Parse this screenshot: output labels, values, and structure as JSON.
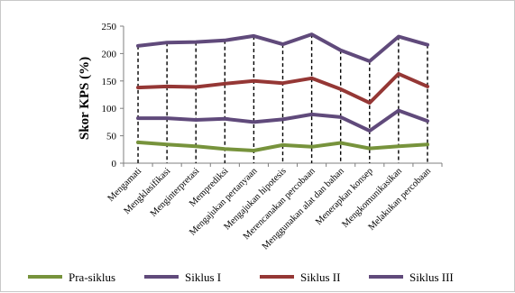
{
  "chart_data": {
    "type": "line",
    "title": "",
    "xlabel": "",
    "ylabel": "Skor KPS (%)",
    "ylim": [
      0,
      250
    ],
    "yticks": [
      0,
      50,
      100,
      150,
      200,
      250
    ],
    "grid": false,
    "legend_position": "bottom",
    "drop_lines": true,
    "stacked": true,
    "categories": [
      "Mengamati",
      "Mengklasifikasi",
      "Menginterpretasi",
      "Memprediksi",
      "Mengajukan pertanyaan",
      "Mengajukan hipotesis",
      "Merencanakan percobaan",
      "Menggunakan alat dan bahan",
      "Menerapkan konsep",
      "Mengkomunikasikan",
      "Melakukan percobaan"
    ],
    "series": [
      {
        "name": "Pra-siklus",
        "color": "#77933c",
        "values": [
          38,
          34,
          31,
          26,
          23,
          33,
          30,
          37,
          27,
          31,
          34
        ]
      },
      {
        "name": "Siklus I",
        "color": "#604a7b",
        "values": [
          44,
          48,
          48,
          55,
          52,
          47,
          59,
          47,
          32,
          65,
          43
        ]
      },
      {
        "name": "Siklus II",
        "color": "#953735",
        "values": [
          56,
          58,
          60,
          64,
          75,
          66,
          66,
          51,
          51,
          67,
          63
        ]
      },
      {
        "name": "Siklus III",
        "color": "#604a7b",
        "values": [
          76,
          80,
          82,
          79,
          82,
          71,
          80,
          71,
          76,
          68,
          76
        ]
      }
    ]
  }
}
